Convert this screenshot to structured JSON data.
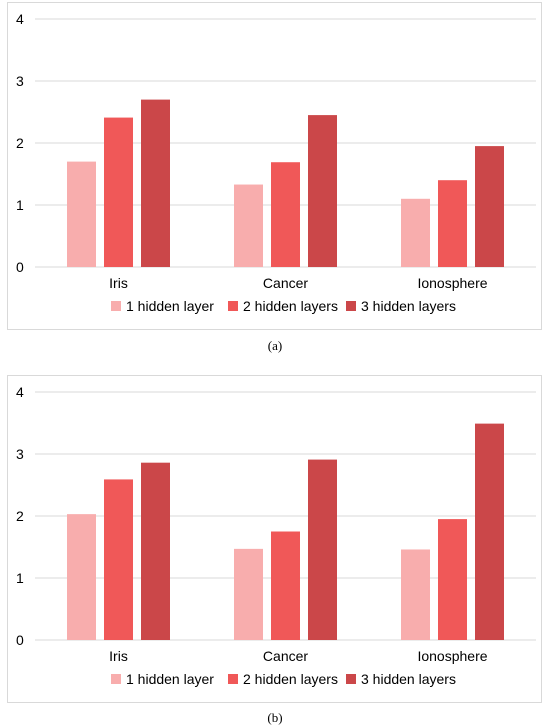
{
  "colors": {
    "s1": "#f8adad",
    "s2": "#f05858",
    "s3": "#cb4749",
    "grid": "#d9d9d9",
    "text": "#000000"
  },
  "captions": {
    "a": "(a)",
    "b": "(b)"
  },
  "chart_data": [
    {
      "type": "bar",
      "categories": [
        "Iris",
        "Cancer",
        "Ionosphere"
      ],
      "ylim": [
        0,
        4
      ],
      "yticks": [
        "0",
        "1",
        "2",
        "3",
        "4"
      ],
      "grid": true,
      "legend": "bottom",
      "series": [
        {
          "name": "1 hidden layer",
          "values": [
            1.7,
            1.33,
            1.1
          ]
        },
        {
          "name": "2 hidden layers",
          "values": [
            2.41,
            1.69,
            1.4
          ]
        },
        {
          "name": "3 hidden layers",
          "values": [
            2.7,
            2.45,
            1.95
          ]
        }
      ]
    },
    {
      "type": "bar",
      "categories": [
        "Iris",
        "Cancer",
        "Ionosphere"
      ],
      "ylim": [
        0,
        4
      ],
      "yticks": [
        "0",
        "1",
        "2",
        "3",
        "4"
      ],
      "grid": true,
      "legend": "bottom",
      "series": [
        {
          "name": "1 hidden layer",
          "values": [
            2.03,
            1.47,
            1.46
          ]
        },
        {
          "name": "2 hidden layers",
          "values": [
            2.59,
            1.75,
            1.95
          ]
        },
        {
          "name": "3 hidden layers",
          "values": [
            2.86,
            2.91,
            3.49
          ]
        }
      ]
    }
  ]
}
